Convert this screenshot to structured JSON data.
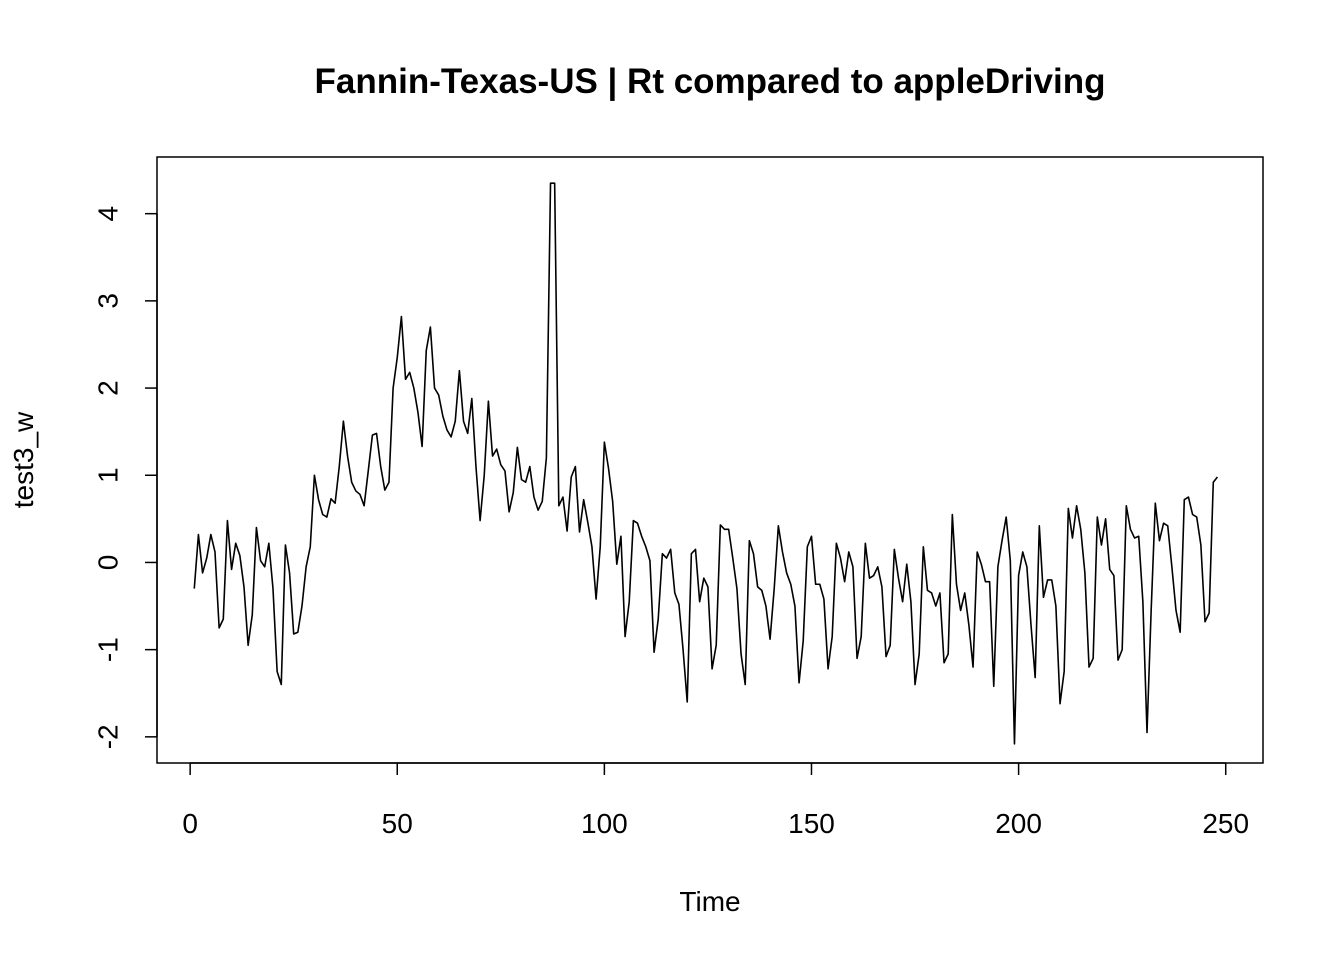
{
  "chart_data": {
    "type": "line",
    "title": "Fannin-Texas-US | Rt compared to appleDriving",
    "xlabel": "Time",
    "ylabel": "test3_w",
    "xlim": [
      -8,
      259
    ],
    "ylim": [
      -2.3,
      4.65
    ],
    "x_ticks": [
      0,
      50,
      100,
      150,
      200,
      250
    ],
    "x_tick_labels": [
      "0",
      "50",
      "100",
      "150",
      "200",
      "250"
    ],
    "y_ticks": [
      -2,
      -1,
      0,
      1,
      2,
      3,
      4
    ],
    "y_tick_labels": [
      "-2",
      "-1",
      "0",
      "1",
      "2",
      "3",
      "4"
    ],
    "grid": false,
    "legend": "none",
    "x_start": 1,
    "values": [
      -0.3,
      0.32,
      -0.12,
      0.05,
      0.32,
      0.12,
      -0.75,
      -0.65,
      0.48,
      -0.08,
      0.22,
      0.08,
      -0.28,
      -0.95,
      -0.6,
      0.4,
      0.02,
      -0.05,
      0.22,
      -0.3,
      -1.25,
      -1.4,
      0.2,
      -0.12,
      -0.82,
      -0.8,
      -0.5,
      -0.05,
      0.18,
      1.0,
      0.72,
      0.55,
      0.52,
      0.73,
      0.68,
      1.1,
      1.62,
      1.22,
      0.92,
      0.82,
      0.78,
      0.65,
      1.05,
      1.46,
      1.48,
      1.1,
      0.83,
      0.92,
      2.0,
      2.35,
      2.82,
      2.1,
      2.18,
      2.0,
      1.72,
      1.33,
      2.43,
      2.7,
      2.0,
      1.92,
      1.68,
      1.52,
      1.44,
      1.62,
      2.2,
      1.62,
      1.48,
      1.88,
      1.1,
      0.48,
      1.0,
      1.85,
      1.22,
      1.3,
      1.12,
      1.05,
      0.58,
      0.8,
      1.32,
      0.95,
      0.92,
      1.1,
      0.75,
      0.6,
      0.7,
      1.2,
      4.35,
      4.35,
      0.65,
      0.75,
      0.36,
      0.98,
      1.1,
      0.35,
      0.72,
      0.46,
      0.18,
      -0.42,
      0.18,
      1.38,
      1.08,
      0.7,
      -0.02,
      0.3,
      -0.85,
      -0.45,
      0.48,
      0.45,
      0.3,
      0.18,
      0.02,
      -1.03,
      -0.65,
      0.1,
      0.05,
      0.15,
      -0.35,
      -0.48,
      -1.0,
      -1.6,
      0.1,
      0.15,
      -0.45,
      -0.18,
      -0.28,
      -1.22,
      -0.95,
      0.43,
      0.38,
      0.38,
      0.05,
      -0.3,
      -1.05,
      -1.4,
      0.25,
      0.1,
      -0.28,
      -0.32,
      -0.5,
      -0.88,
      -0.3,
      0.42,
      0.12,
      -0.12,
      -0.25,
      -0.5,
      -1.38,
      -0.9,
      0.18,
      0.3,
      -0.25,
      -0.25,
      -0.42,
      -1.22,
      -0.85,
      0.22,
      0.05,
      -0.22,
      0.12,
      -0.05,
      -1.1,
      -0.85,
      0.22,
      -0.18,
      -0.15,
      -0.05,
      -0.28,
      -1.08,
      -0.95,
      0.15,
      -0.18,
      -0.45,
      -0.02,
      -0.45,
      -1.4,
      -1.05,
      0.18,
      -0.32,
      -0.35,
      -0.5,
      -0.35,
      -1.15,
      -1.05,
      0.55,
      -0.25,
      -0.55,
      -0.35,
      -0.72,
      -1.2,
      0.12,
      -0.02,
      -0.22,
      -0.22,
      -1.42,
      -0.05,
      0.25,
      0.52,
      0.02,
      -2.08,
      -0.15,
      0.12,
      -0.05,
      -0.72,
      -1.32,
      0.42,
      -0.4,
      -0.2,
      -0.2,
      -0.5,
      -1.62,
      -1.25,
      0.62,
      0.28,
      0.65,
      0.38,
      -0.12,
      -1.2,
      -1.1,
      0.52,
      0.2,
      0.5,
      -0.08,
      -0.15,
      -1.12,
      -1.0,
      0.65,
      0.38,
      0.28,
      0.3,
      -0.45,
      -1.95,
      -0.55,
      0.68,
      0.25,
      0.45,
      0.42,
      -0.05,
      -0.55,
      -0.8,
      0.72,
      0.75,
      0.55,
      0.52,
      0.2,
      -0.68,
      -0.58,
      0.92,
      0.98
    ]
  }
}
